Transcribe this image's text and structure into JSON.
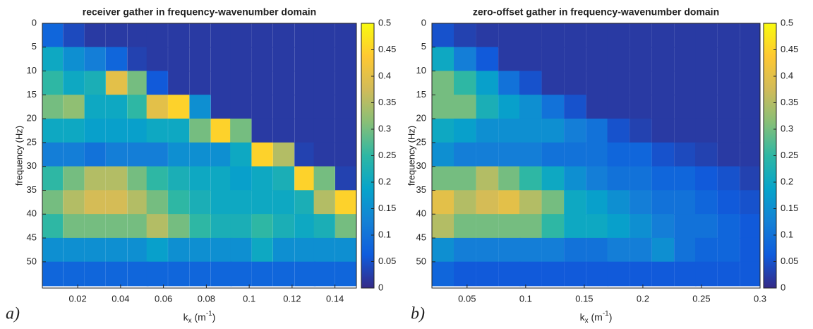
{
  "chart_data": [
    {
      "type": "heatmap",
      "title": "receiver gather in frequency-wavenumber domain",
      "panel_label": "a)",
      "ylabel": "frequency (Hz)",
      "xlabel_parts": [
        "k",
        "x",
        " (m",
        "-1",
        ")"
      ],
      "xlim": [
        0.0035,
        0.15
      ],
      "xticks": [
        0.02,
        0.04,
        0.06,
        0.08,
        0.1,
        0.12,
        0.14
      ],
      "ylim": [
        0,
        55.5
      ],
      "y_inverted": true,
      "yticks": [
        0,
        5,
        10,
        15,
        20,
        25,
        30,
        35,
        40,
        45,
        50
      ],
      "clim": [
        0,
        0.5
      ],
      "cticks": [
        0,
        0.05,
        0.1,
        0.15,
        0.2,
        0.25,
        0.3,
        0.35,
        0.4,
        0.45,
        0.5
      ],
      "colormap": [
        "#352a87",
        "#0f5cdd",
        "#1481d6",
        "#06a4ca",
        "#2eb7a4",
        "#87bf77",
        "#d1bb59",
        "#fec832",
        "#f9fb0e"
      ],
      "x": [
        0.008,
        0.018,
        0.028,
        0.038,
        0.048,
        0.057,
        0.067,
        0.077,
        0.087,
        0.096,
        0.106,
        0.116,
        0.126,
        0.135,
        0.145
      ],
      "y": [
        2.5,
        7.5,
        12.5,
        17.5,
        22.5,
        27.5,
        32.5,
        37.5,
        42.5,
        47.5,
        52.5
      ],
      "z": [
        [
          0.08,
          0.04,
          0.02,
          0.02,
          0.02,
          0.02,
          0.02,
          0.02,
          0.02,
          0.02,
          0.02,
          0.02,
          0.02,
          0.02,
          0.02
        ],
        [
          0.2,
          0.15,
          0.12,
          0.08,
          0.03,
          0.02,
          0.02,
          0.02,
          0.02,
          0.02,
          0.02,
          0.02,
          0.02,
          0.02,
          0.02
        ],
        [
          0.25,
          0.2,
          0.22,
          0.4,
          0.3,
          0.06,
          0.02,
          0.02,
          0.02,
          0.02,
          0.02,
          0.02,
          0.02,
          0.02,
          0.02
        ],
        [
          0.3,
          0.32,
          0.2,
          0.2,
          0.25,
          0.4,
          0.45,
          0.15,
          0.02,
          0.02,
          0.02,
          0.02,
          0.02,
          0.02,
          0.02
        ],
        [
          0.2,
          0.2,
          0.18,
          0.18,
          0.18,
          0.2,
          0.2,
          0.3,
          0.45,
          0.3,
          0.02,
          0.02,
          0.02,
          0.02,
          0.02
        ],
        [
          0.12,
          0.12,
          0.1,
          0.12,
          0.12,
          0.12,
          0.15,
          0.15,
          0.15,
          0.2,
          0.45,
          0.35,
          0.03,
          0.02,
          0.02
        ],
        [
          0.25,
          0.3,
          0.35,
          0.35,
          0.3,
          0.25,
          0.22,
          0.2,
          0.2,
          0.18,
          0.2,
          0.22,
          0.45,
          0.3,
          0.03
        ],
        [
          0.3,
          0.35,
          0.38,
          0.38,
          0.35,
          0.3,
          0.25,
          0.22,
          0.2,
          0.2,
          0.2,
          0.2,
          0.22,
          0.35,
          0.45
        ],
        [
          0.25,
          0.3,
          0.3,
          0.3,
          0.3,
          0.35,
          0.3,
          0.25,
          0.22,
          0.22,
          0.25,
          0.22,
          0.2,
          0.22,
          0.3
        ],
        [
          0.15,
          0.15,
          0.15,
          0.15,
          0.15,
          0.18,
          0.15,
          0.15,
          0.15,
          0.15,
          0.2,
          0.15,
          0.15,
          0.15,
          0.15
        ],
        [
          0.08,
          0.08,
          0.08,
          0.08,
          0.08,
          0.08,
          0.08,
          0.08,
          0.08,
          0.08,
          0.08,
          0.08,
          0.08,
          0.08,
          0.08
        ]
      ]
    },
    {
      "type": "heatmap",
      "title": "zero-offset gather in frequency-wavenumber domain",
      "panel_label": "b)",
      "ylabel": "frequency (Hz)",
      "xlabel_parts": [
        "k",
        "x",
        " (m",
        "-1",
        ")"
      ],
      "xlim": [
        0.02,
        0.3
      ],
      "xticks": [
        0.05,
        0.1,
        0.15,
        0.2,
        0.25,
        0.3
      ],
      "ylim": [
        0,
        55.5
      ],
      "y_inverted": true,
      "yticks": [
        0,
        5,
        10,
        15,
        20,
        25,
        30,
        35,
        40,
        45,
        50
      ],
      "clim": [
        0,
        0.5
      ],
      "cticks": [
        0,
        0.05,
        0.1,
        0.15,
        0.2,
        0.25,
        0.3,
        0.35,
        0.4,
        0.45,
        0.5
      ],
      "colormap": [
        "#352a87",
        "#0f5cdd",
        "#1481d6",
        "#06a4ca",
        "#2eb7a4",
        "#87bf77",
        "#d1bb59",
        "#fec832",
        "#f9fb0e"
      ],
      "x": [
        0.029,
        0.048,
        0.067,
        0.086,
        0.104,
        0.123,
        0.142,
        0.161,
        0.179,
        0.198,
        0.217,
        0.236,
        0.254,
        0.273,
        0.292
      ],
      "y": [
        2.5,
        7.5,
        12.5,
        17.5,
        22.5,
        27.5,
        32.5,
        37.5,
        42.5,
        47.5,
        52.5
      ],
      "z": [
        [
          0.05,
          0.03,
          0.02,
          0.02,
          0.02,
          0.02,
          0.02,
          0.02,
          0.02,
          0.02,
          0.02,
          0.02,
          0.02,
          0.02,
          0.02
        ],
        [
          0.2,
          0.12,
          0.06,
          0.02,
          0.02,
          0.02,
          0.02,
          0.02,
          0.02,
          0.02,
          0.02,
          0.02,
          0.02,
          0.02,
          0.02
        ],
        [
          0.3,
          0.25,
          0.18,
          0.1,
          0.05,
          0.02,
          0.02,
          0.02,
          0.02,
          0.02,
          0.02,
          0.02,
          0.02,
          0.02,
          0.02
        ],
        [
          0.3,
          0.3,
          0.22,
          0.18,
          0.15,
          0.1,
          0.05,
          0.02,
          0.02,
          0.02,
          0.02,
          0.02,
          0.02,
          0.02,
          0.02
        ],
        [
          0.2,
          0.18,
          0.15,
          0.15,
          0.15,
          0.15,
          0.12,
          0.1,
          0.05,
          0.03,
          0.02,
          0.02,
          0.02,
          0.02,
          0.02
        ],
        [
          0.15,
          0.12,
          0.12,
          0.12,
          0.12,
          0.1,
          0.1,
          0.1,
          0.08,
          0.08,
          0.05,
          0.04,
          0.03,
          0.02,
          0.02
        ],
        [
          0.3,
          0.3,
          0.35,
          0.3,
          0.25,
          0.2,
          0.15,
          0.12,
          0.1,
          0.1,
          0.08,
          0.08,
          0.06,
          0.05,
          0.03
        ],
        [
          0.4,
          0.35,
          0.38,
          0.4,
          0.35,
          0.3,
          0.2,
          0.18,
          0.15,
          0.12,
          0.1,
          0.1,
          0.08,
          0.06,
          0.05
        ],
        [
          0.35,
          0.3,
          0.3,
          0.3,
          0.3,
          0.25,
          0.2,
          0.2,
          0.18,
          0.15,
          0.12,
          0.1,
          0.1,
          0.08,
          0.06
        ],
        [
          0.15,
          0.12,
          0.12,
          0.12,
          0.12,
          0.12,
          0.1,
          0.1,
          0.12,
          0.12,
          0.15,
          0.1,
          0.08,
          0.08,
          0.06
        ],
        [
          0.08,
          0.06,
          0.06,
          0.06,
          0.06,
          0.06,
          0.06,
          0.06,
          0.06,
          0.06,
          0.06,
          0.06,
          0.06,
          0.06,
          0.06
        ]
      ]
    }
  ]
}
